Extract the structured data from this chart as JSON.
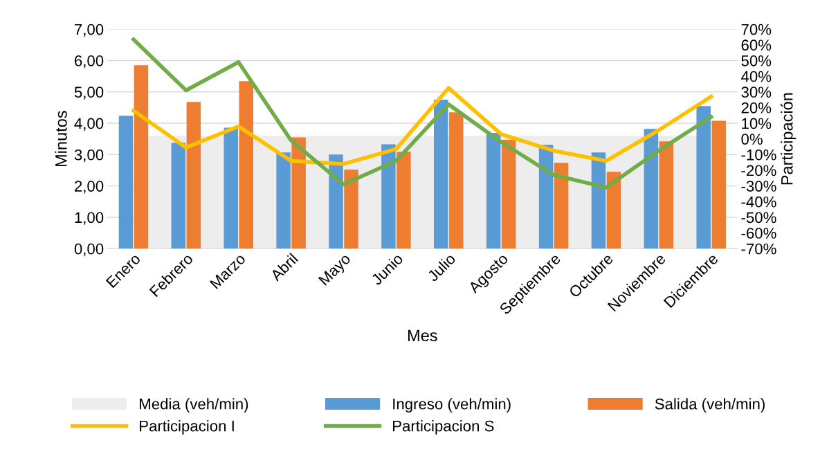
{
  "chart_data": {
    "type": "bar",
    "xlabel": "Mes",
    "ylabel": "Minutos",
    "y2label": "Participación",
    "categories": [
      "Enero",
      "Febrero",
      "Marzo",
      "Abril",
      "Mayo",
      "Junio",
      "Julio",
      "Agosto",
      "Septiembre",
      "Octubre",
      "Noviembre",
      "Diciembre"
    ],
    "series": [
      {
        "name": "Media (veh/min)",
        "type": "area",
        "color": "#ededed",
        "values": [
          3.6,
          3.6,
          3.6,
          3.6,
          3.6,
          3.6,
          3.6,
          3.6,
          3.6,
          3.6,
          3.6,
          3.6
        ]
      },
      {
        "name": "Ingreso (veh/min)",
        "color": "#5b9bd5",
        "values": [
          4.24,
          3.38,
          3.86,
          3.07,
          3.0,
          3.33,
          4.75,
          3.69,
          3.31,
          3.07,
          3.82,
          4.55
        ]
      },
      {
        "name": "Salida (veh/min)",
        "color": "#ed7d31",
        "values": [
          5.85,
          4.68,
          5.34,
          3.55,
          2.52,
          3.09,
          4.35,
          3.47,
          2.74,
          2.45,
          3.42,
          4.08
        ]
      },
      {
        "name": "Participacion I",
        "type": "line",
        "axis": "y2",
        "color": "#ffc000",
        "values": [
          18,
          -5.5,
          8,
          -14,
          -16,
          -6.5,
          32.5,
          3,
          -7.5,
          -14,
          5.5,
          27
        ]
      },
      {
        "name": "Participacion S",
        "type": "line",
        "axis": "y2",
        "color": "#70ad47",
        "values": [
          63.5,
          31,
          49,
          -1,
          -29,
          -14,
          22,
          -2,
          -23,
          -31,
          -7.5,
          14
        ]
      }
    ],
    "ylim": [
      0,
      7
    ],
    "yticks": [
      {
        "value": 0,
        "label": "0,00"
      },
      {
        "value": 1,
        "label": "1,00"
      },
      {
        "value": 2,
        "label": "2,00"
      },
      {
        "value": 3,
        "label": "3,00"
      },
      {
        "value": 4,
        "label": "4,00"
      },
      {
        "value": 5,
        "label": "5,00"
      },
      {
        "value": 6,
        "label": "6,00"
      },
      {
        "value": 7,
        "label": "7,00"
      }
    ],
    "y2lim": [
      -70,
      70
    ],
    "y2ticks": [
      {
        "value": -70,
        "label": "-70%"
      },
      {
        "value": -60,
        "label": "-60%"
      },
      {
        "value": -50,
        "label": "-50%"
      },
      {
        "value": -40,
        "label": "-40%"
      },
      {
        "value": -30,
        "label": "-30%"
      },
      {
        "value": -20,
        "label": "-20%"
      },
      {
        "value": -10,
        "label": "-10%"
      },
      {
        "value": 0,
        "label": "0%"
      },
      {
        "value": 10,
        "label": "10%"
      },
      {
        "value": 20,
        "label": "20%"
      },
      {
        "value": 30,
        "label": "30%"
      },
      {
        "value": 40,
        "label": "40%"
      },
      {
        "value": 50,
        "label": "50%"
      },
      {
        "value": 60,
        "label": "60%"
      },
      {
        "value": 70,
        "label": "70%"
      }
    ],
    "grid": "y",
    "legend": "bottom",
    "marker": "none",
    "line_style": "solid"
  }
}
